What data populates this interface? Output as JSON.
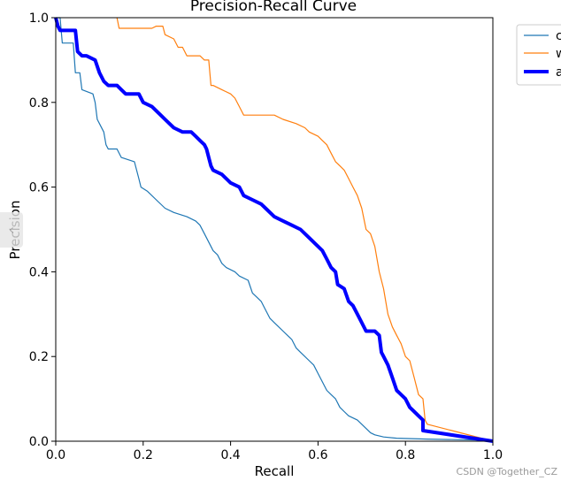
{
  "chart_data": {
    "type": "line",
    "title": "Precision-Recall Curve",
    "xlabel": "Recall",
    "ylabel": "Precision",
    "xlim": [
      0,
      1
    ],
    "ylim": [
      0,
      1
    ],
    "x_ticks": [
      0.0,
      0.2,
      0.4,
      0.6,
      0.8,
      1.0
    ],
    "y_ticks": [
      0.0,
      0.2,
      0.4,
      0.6,
      0.8,
      1.0
    ],
    "x_tick_labels": [
      "0.0",
      "0.2",
      "0.4",
      "0.6",
      "0.8",
      "1.0"
    ],
    "y_tick_labels": [
      "0.0",
      "0.2",
      "0.4",
      "0.6",
      "0.8",
      "1.0"
    ],
    "grid": false,
    "legend_position": "outside-top-right",
    "series": [
      {
        "name": "c",
        "color": "#1f77b4",
        "style": "thin-step",
        "points": [
          [
            0.0,
            1.0
          ],
          [
            0.01,
            1.0
          ],
          [
            0.015,
            0.94
          ],
          [
            0.04,
            0.94
          ],
          [
            0.045,
            0.87
          ],
          [
            0.055,
            0.87
          ],
          [
            0.06,
            0.83
          ],
          [
            0.085,
            0.82
          ],
          [
            0.09,
            0.8
          ],
          [
            0.095,
            0.76
          ],
          [
            0.1,
            0.75
          ],
          [
            0.11,
            0.73
          ],
          [
            0.115,
            0.7
          ],
          [
            0.12,
            0.69
          ],
          [
            0.14,
            0.69
          ],
          [
            0.15,
            0.67
          ],
          [
            0.18,
            0.66
          ],
          [
            0.19,
            0.62
          ],
          [
            0.195,
            0.6
          ],
          [
            0.21,
            0.59
          ],
          [
            0.23,
            0.57
          ],
          [
            0.25,
            0.55
          ],
          [
            0.27,
            0.54
          ],
          [
            0.3,
            0.53
          ],
          [
            0.32,
            0.52
          ],
          [
            0.33,
            0.51
          ],
          [
            0.34,
            0.49
          ],
          [
            0.355,
            0.46
          ],
          [
            0.36,
            0.45
          ],
          [
            0.37,
            0.44
          ],
          [
            0.38,
            0.42
          ],
          [
            0.39,
            0.41
          ],
          [
            0.41,
            0.4
          ],
          [
            0.42,
            0.39
          ],
          [
            0.44,
            0.38
          ],
          [
            0.45,
            0.35
          ],
          [
            0.46,
            0.34
          ],
          [
            0.47,
            0.33
          ],
          [
            0.48,
            0.31
          ],
          [
            0.49,
            0.29
          ],
          [
            0.5,
            0.28
          ],
          [
            0.52,
            0.26
          ],
          [
            0.54,
            0.24
          ],
          [
            0.55,
            0.22
          ],
          [
            0.56,
            0.21
          ],
          [
            0.58,
            0.19
          ],
          [
            0.59,
            0.18
          ],
          [
            0.6,
            0.16
          ],
          [
            0.62,
            0.12
          ],
          [
            0.63,
            0.11
          ],
          [
            0.64,
            0.1
          ],
          [
            0.65,
            0.08
          ],
          [
            0.66,
            0.07
          ],
          [
            0.67,
            0.06
          ],
          [
            0.69,
            0.05
          ],
          [
            0.7,
            0.04
          ],
          [
            0.71,
            0.03
          ],
          [
            0.72,
            0.02
          ],
          [
            0.73,
            0.015
          ],
          [
            0.75,
            0.01
          ],
          [
            0.78,
            0.007
          ],
          [
            0.85,
            0.005
          ],
          [
            1.0,
            0.002
          ]
        ]
      },
      {
        "name": "w",
        "color": "#ff7f0e",
        "style": "thin-step",
        "points": [
          [
            0.14,
            1.0
          ],
          [
            0.145,
            0.975
          ],
          [
            0.22,
            0.975
          ],
          [
            0.23,
            0.98
          ],
          [
            0.245,
            0.98
          ],
          [
            0.25,
            0.96
          ],
          [
            0.27,
            0.95
          ],
          [
            0.28,
            0.93
          ],
          [
            0.29,
            0.93
          ],
          [
            0.3,
            0.91
          ],
          [
            0.33,
            0.91
          ],
          [
            0.34,
            0.9
          ],
          [
            0.35,
            0.9
          ],
          [
            0.355,
            0.84
          ],
          [
            0.36,
            0.84
          ],
          [
            0.38,
            0.83
          ],
          [
            0.4,
            0.82
          ],
          [
            0.41,
            0.81
          ],
          [
            0.42,
            0.79
          ],
          [
            0.43,
            0.77
          ],
          [
            0.5,
            0.77
          ],
          [
            0.52,
            0.76
          ],
          [
            0.55,
            0.75
          ],
          [
            0.57,
            0.74
          ],
          [
            0.58,
            0.73
          ],
          [
            0.6,
            0.72
          ],
          [
            0.61,
            0.71
          ],
          [
            0.62,
            0.7
          ],
          [
            0.63,
            0.68
          ],
          [
            0.64,
            0.66
          ],
          [
            0.65,
            0.65
          ],
          [
            0.66,
            0.64
          ],
          [
            0.67,
            0.62
          ],
          [
            0.68,
            0.6
          ],
          [
            0.69,
            0.58
          ],
          [
            0.7,
            0.55
          ],
          [
            0.71,
            0.5
          ],
          [
            0.72,
            0.49
          ],
          [
            0.73,
            0.46
          ],
          [
            0.74,
            0.4
          ],
          [
            0.75,
            0.36
          ],
          [
            0.76,
            0.3
          ],
          [
            0.77,
            0.27
          ],
          [
            0.78,
            0.25
          ],
          [
            0.79,
            0.23
          ],
          [
            0.8,
            0.2
          ],
          [
            0.81,
            0.19
          ],
          [
            0.82,
            0.15
          ],
          [
            0.83,
            0.11
          ],
          [
            0.84,
            0.1
          ],
          [
            0.845,
            0.05
          ],
          [
            0.85,
            0.04
          ],
          [
            1.0,
            0.0
          ]
        ]
      },
      {
        "name": "a",
        "color": "#0000ff",
        "style": "thick",
        "points": [
          [
            0.0,
            1.0
          ],
          [
            0.005,
            0.98
          ],
          [
            0.01,
            0.97
          ],
          [
            0.045,
            0.97
          ],
          [
            0.05,
            0.92
          ],
          [
            0.06,
            0.91
          ],
          [
            0.07,
            0.91
          ],
          [
            0.09,
            0.9
          ],
          [
            0.1,
            0.87
          ],
          [
            0.11,
            0.85
          ],
          [
            0.12,
            0.84
          ],
          [
            0.14,
            0.84
          ],
          [
            0.15,
            0.83
          ],
          [
            0.16,
            0.82
          ],
          [
            0.19,
            0.82
          ],
          [
            0.2,
            0.8
          ],
          [
            0.22,
            0.79
          ],
          [
            0.24,
            0.77
          ],
          [
            0.25,
            0.76
          ],
          [
            0.27,
            0.74
          ],
          [
            0.29,
            0.73
          ],
          [
            0.31,
            0.73
          ],
          [
            0.32,
            0.72
          ],
          [
            0.33,
            0.71
          ],
          [
            0.34,
            0.7
          ],
          [
            0.345,
            0.69
          ],
          [
            0.35,
            0.67
          ],
          [
            0.355,
            0.65
          ],
          [
            0.36,
            0.64
          ],
          [
            0.38,
            0.63
          ],
          [
            0.4,
            0.61
          ],
          [
            0.42,
            0.6
          ],
          [
            0.43,
            0.58
          ],
          [
            0.45,
            0.57
          ],
          [
            0.47,
            0.56
          ],
          [
            0.48,
            0.55
          ],
          [
            0.5,
            0.53
          ],
          [
            0.52,
            0.52
          ],
          [
            0.54,
            0.51
          ],
          [
            0.56,
            0.5
          ],
          [
            0.58,
            0.48
          ],
          [
            0.6,
            0.46
          ],
          [
            0.61,
            0.45
          ],
          [
            0.62,
            0.43
          ],
          [
            0.63,
            0.41
          ],
          [
            0.64,
            0.4
          ],
          [
            0.645,
            0.37
          ],
          [
            0.66,
            0.36
          ],
          [
            0.67,
            0.33
          ],
          [
            0.68,
            0.32
          ],
          [
            0.69,
            0.3
          ],
          [
            0.7,
            0.28
          ],
          [
            0.71,
            0.26
          ],
          [
            0.73,
            0.26
          ],
          [
            0.74,
            0.25
          ],
          [
            0.745,
            0.21
          ],
          [
            0.75,
            0.2
          ],
          [
            0.76,
            0.18
          ],
          [
            0.77,
            0.15
          ],
          [
            0.78,
            0.12
          ],
          [
            0.79,
            0.11
          ],
          [
            0.8,
            0.1
          ],
          [
            0.81,
            0.08
          ],
          [
            0.82,
            0.07
          ],
          [
            0.83,
            0.06
          ],
          [
            0.84,
            0.05
          ],
          [
            0.84,
            0.025
          ],
          [
            1.0,
            0.0
          ]
        ]
      }
    ]
  },
  "watermark": "CSDN @Together_CZ",
  "side_handle_glyph": "‹"
}
